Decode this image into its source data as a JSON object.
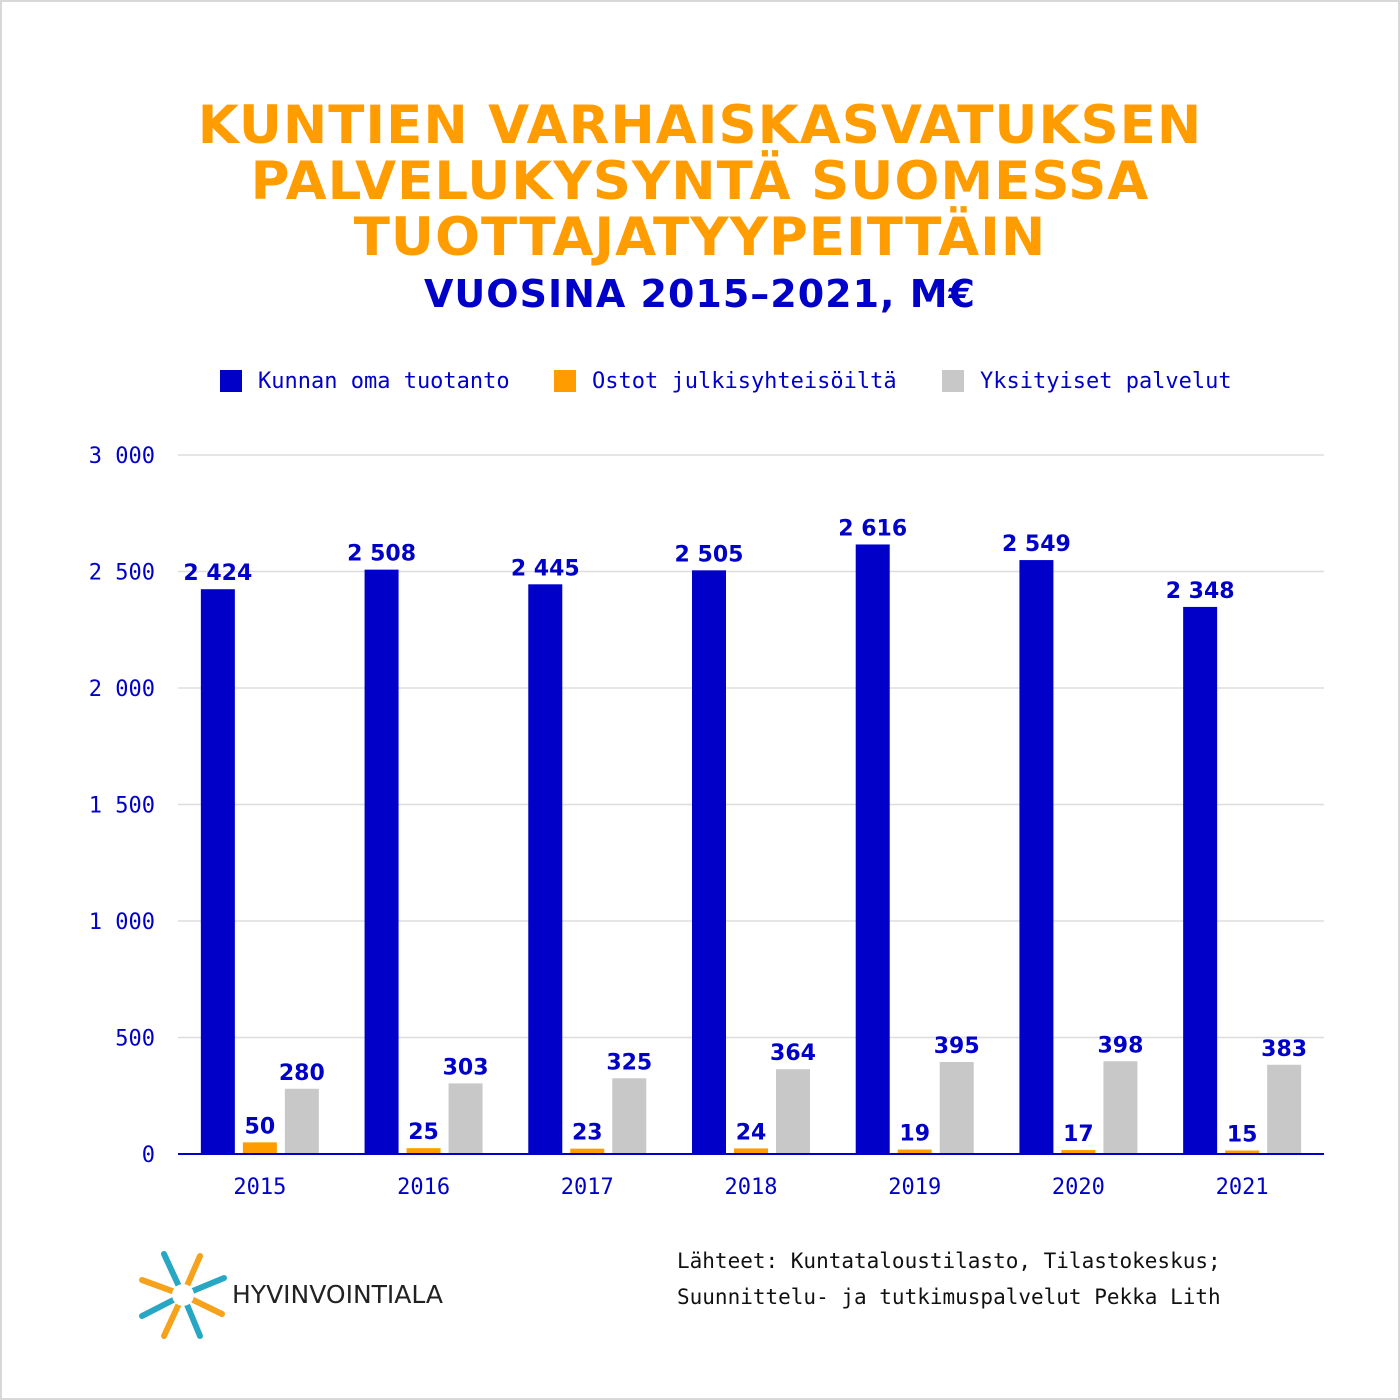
{
  "title_lines": [
    "KUNTIEN VARHAISKASVATUKSEN",
    "PALVELUKYSYNTÄ SUOMESSA",
    "TUOTTAJATYYPEITTÄIN"
  ],
  "subtitle": "VUOSINA 2015–2021, M€",
  "colors": {
    "title": "#ff9d00",
    "accent": "#0000c8",
    "series_oma": "#0000c8",
    "series_julkiset": "#ff9d00",
    "series_yksityiset": "#c8c8c8",
    "grid": "#dddddd",
    "logo_orange": "#f7a21b",
    "logo_teal": "#27a7c4"
  },
  "chart_data": {
    "type": "bar",
    "categories": [
      "2015",
      "2016",
      "2017",
      "2018",
      "2019",
      "2020",
      "2021"
    ],
    "series": [
      {
        "name": "Kunnan oma tuotanto",
        "values": [
          2424,
          2508,
          2445,
          2505,
          2616,
          2549,
          2348
        ],
        "labels": [
          "2 424",
          "2 508",
          "2 445",
          "2 505",
          "2 616",
          "2 549",
          "2 348"
        ]
      },
      {
        "name": "Ostot julkisyhteisöiltä",
        "values": [
          50,
          25,
          23,
          24,
          19,
          17,
          15
        ],
        "labels": [
          "50",
          "25",
          "23",
          "24",
          "19",
          "17",
          "15"
        ]
      },
      {
        "name": "Yksityiset palvelut",
        "values": [
          280,
          303,
          325,
          364,
          395,
          398,
          383
        ],
        "labels": [
          "280",
          "303",
          "325",
          "364",
          "395",
          "398",
          "383"
        ]
      }
    ],
    "ylim": [
      0,
      3000
    ],
    "yticks": [
      0,
      500,
      1000,
      1500,
      2000,
      2500,
      3000
    ],
    "ytick_labels": [
      "0",
      "500",
      "1 000",
      "1 500",
      "2 000",
      "2 500",
      "3 000"
    ],
    "grid": true,
    "legend_position": "top"
  },
  "footer": {
    "source_line1": "Lähteet: Kuntataloustilasto, Tilastokeskus;",
    "source_line2": "Suunnittelu- ja tutkimuspalvelut Pekka Lith",
    "logo_text": "HYVINVOINTIALA"
  }
}
